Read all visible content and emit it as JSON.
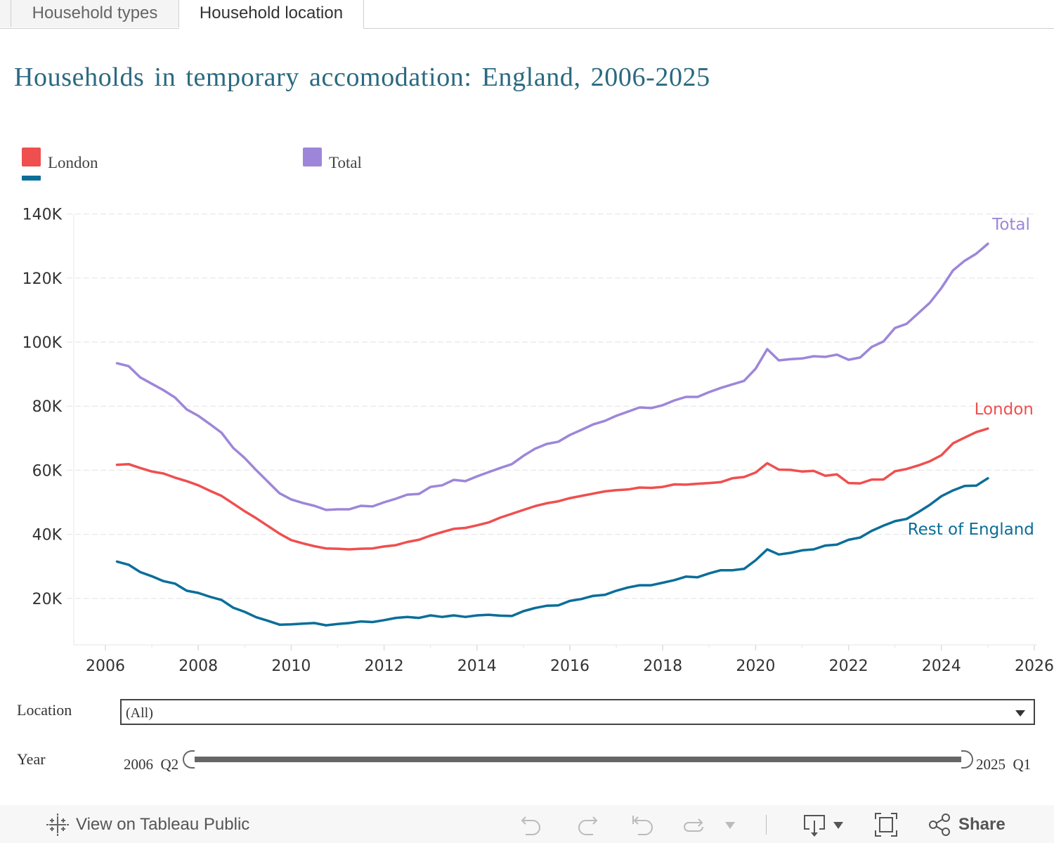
{
  "tabs": [
    {
      "label": "Household types",
      "active": false
    },
    {
      "label": "Household location",
      "active": true
    }
  ],
  "title": "Households in temporary accomodation: England, 2006-2025",
  "legend": {
    "items": [
      {
        "label": "London",
        "color": "#ef4f4f"
      },
      {
        "label": "",
        "color": "#0b6e99"
      },
      {
        "label": "Total",
        "color": "#9d86d9"
      }
    ]
  },
  "filters": {
    "location_label": "Location",
    "location_value": "(All)",
    "year_label": "Year",
    "year_start": "2006  Q2",
    "year_end": "2025  Q1"
  },
  "footer": {
    "view_link": "View on Tableau Public",
    "share_label": "Share"
  },
  "chart_data": {
    "type": "line",
    "title": "Households in temporary accomodation: England, 2006-2025",
    "xlabel": "",
    "ylabel": "",
    "xlim": [
      2005.3,
      2026.05
    ],
    "ylim": [
      5000,
      143000
    ],
    "x_ticks": [
      2006,
      2008,
      2010,
      2012,
      2014,
      2016,
      2018,
      2020,
      2022,
      2024,
      2026
    ],
    "y_ticks": [
      20000,
      40000,
      60000,
      80000,
      100000,
      120000,
      140000
    ],
    "y_tick_labels": [
      "20K",
      "40K",
      "60K",
      "80K",
      "100K",
      "120K",
      "140K"
    ],
    "grid": "horizontal-dashed",
    "x_start": 2006.25,
    "x_step": 0.25,
    "series": [
      {
        "name": "Total",
        "color": "#9d86d9",
        "values": [
          93.4,
          92.5,
          89.0,
          87.0,
          85.0,
          82.7,
          79.0,
          77.0,
          74.4,
          71.7,
          67.0,
          63.8,
          60.0,
          56.4,
          52.8,
          50.9,
          49.8,
          48.9,
          47.6,
          47.8,
          47.8,
          48.9,
          48.7,
          50.0,
          51.1,
          52.4,
          52.6,
          54.8,
          55.3,
          57.0,
          56.6,
          58.1,
          59.4,
          60.7,
          61.9,
          64.5,
          66.7,
          68.2,
          68.9,
          71.0,
          72.6,
          74.3,
          75.4,
          77.0,
          78.3,
          79.6,
          79.4,
          80.3,
          81.8,
          82.9,
          82.9,
          84.4,
          85.7,
          86.8,
          87.9,
          91.7,
          97.8,
          94.3,
          94.7,
          94.9,
          95.6,
          95.4,
          96.1,
          94.5,
          95.2,
          98.5,
          100.2,
          104.4,
          105.7,
          109.0,
          112.3,
          116.9,
          122.4,
          125.4,
          127.6,
          130.7
        ],
        "unit": "thousands"
      },
      {
        "name": "London",
        "color": "#ef4f4f",
        "values": [
          61.7,
          61.9,
          60.7,
          59.6,
          59.0,
          57.7,
          56.6,
          55.3,
          53.6,
          52.0,
          49.6,
          47.2,
          45.0,
          42.6,
          40.2,
          38.2,
          37.2,
          36.3,
          35.6,
          35.5,
          35.3,
          35.5,
          35.6,
          36.2,
          36.6,
          37.6,
          38.3,
          39.6,
          40.7,
          41.7,
          42.0,
          42.8,
          43.7,
          45.2,
          46.4,
          47.6,
          48.8,
          49.7,
          50.3,
          51.3,
          52.0,
          52.7,
          53.4,
          53.8,
          54.0,
          54.6,
          54.5,
          54.8,
          55.6,
          55.5,
          55.8,
          56.0,
          56.3,
          57.5,
          57.9,
          59.3,
          62.2,
          60.2,
          60.1,
          59.6,
          59.8,
          58.3,
          58.7,
          56.0,
          55.9,
          57.1,
          57.1,
          59.7,
          60.4,
          61.5,
          62.8,
          64.7,
          68.4,
          70.2,
          71.9,
          73.0
        ],
        "unit": "thousands"
      },
      {
        "name": "Rest of England",
        "color": "#0b6e99",
        "values": [
          31.5,
          30.5,
          28.2,
          26.9,
          25.4,
          24.6,
          22.4,
          21.7,
          20.5,
          19.5,
          17.1,
          15.8,
          14.1,
          13.0,
          11.8,
          11.9,
          12.1,
          12.3,
          11.6,
          12.0,
          12.3,
          12.8,
          12.6,
          13.2,
          13.9,
          14.2,
          13.9,
          14.7,
          14.2,
          14.7,
          14.2,
          14.7,
          14.9,
          14.6,
          14.5,
          16.0,
          17.0,
          17.7,
          17.8,
          19.2,
          19.8,
          20.8,
          21.1,
          22.4,
          23.4,
          24.1,
          24.1,
          24.9,
          25.7,
          26.8,
          26.6,
          27.8,
          28.8,
          28.8,
          29.2,
          31.9,
          35.3,
          33.7,
          34.2,
          35.0,
          35.3,
          36.5,
          36.8,
          38.3,
          39.0,
          41.1,
          42.7,
          44.1,
          44.8,
          46.9,
          49.2,
          51.9,
          53.7,
          55.1,
          55.2,
          57.5
        ],
        "unit": "thousands"
      }
    ]
  }
}
